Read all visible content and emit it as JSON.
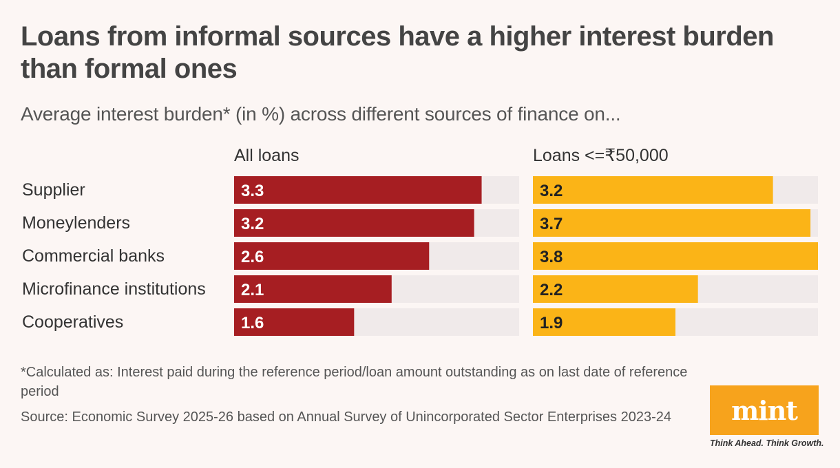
{
  "title": "Loans from informal sources have a higher interest burden than formal ones",
  "subtitle": "Average interest burden* (in %) across different sources of finance on...",
  "chart_data": {
    "type": "bar",
    "orientation": "horizontal",
    "categories": [
      "Supplier",
      "Moneylenders",
      "Commercial banks",
      "Microfinance institutions",
      "Cooperatives"
    ],
    "series": [
      {
        "name": "All loans",
        "values": [
          3.3,
          3.2,
          2.6,
          2.1,
          1.6
        ],
        "color": "#a61e22"
      },
      {
        "name": "Loans <=₹50,000",
        "values": [
          3.2,
          3.7,
          3.8,
          2.2,
          1.9
        ],
        "color": "#fbb417"
      }
    ],
    "xlim": [
      0,
      3.8
    ],
    "track_color": "#f0eaea",
    "grid": false
  },
  "footnote": "*Calculated as: Interest paid during the reference period/loan amount outstanding as on last date of reference period",
  "source": "Source: Economic Survey 2025-26 based on Annual Survey of Unincorporated Sector Enterprises 2023-24",
  "logo": {
    "text": "mint",
    "tagline": "Think Ahead. Think Growth.",
    "color": "#f7a31c"
  }
}
